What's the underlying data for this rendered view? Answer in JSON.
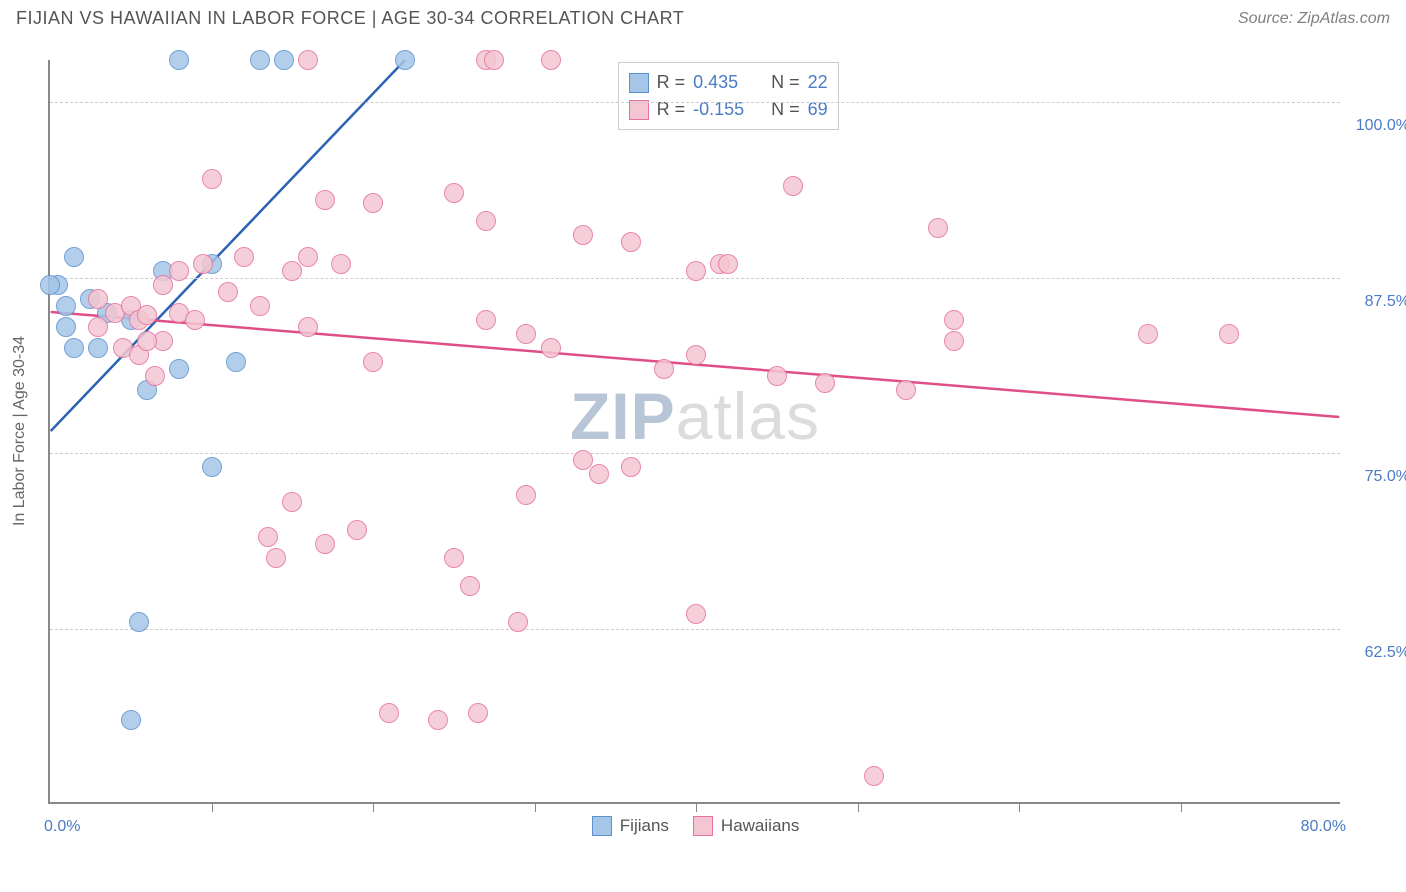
{
  "header": {
    "title": "FIJIAN VS HAWAIIAN IN LABOR FORCE | AGE 30-34 CORRELATION CHART",
    "source": "Source: ZipAtlas.com"
  },
  "chart": {
    "type": "scatter",
    "ylabel": "In Labor Force | Age 30-34",
    "background_color": "#ffffff",
    "grid_color": "#cccccc",
    "axis_color": "#888888",
    "label_color": "#4a7bc4",
    "axis_font_size": 16,
    "title_font_size": 18,
    "xlim": [
      0,
      80
    ],
    "ylim": [
      50,
      103
    ],
    "xtick_positions": [
      10,
      20,
      30,
      40,
      50,
      60,
      70
    ],
    "xlim_labels": {
      "min": "0.0%",
      "max": "80.0%"
    },
    "ytick_labels": [
      {
        "y": 100.0,
        "label": "100.0%"
      },
      {
        "y": 87.5,
        "label": "87.5%"
      },
      {
        "y": 75.0,
        "label": "75.0%"
      },
      {
        "y": 62.5,
        "label": "62.5%"
      }
    ],
    "marker_radius": 10,
    "marker_stroke_width": 1.5,
    "marker_fill_opacity": 0.35,
    "line_width": 2.5,
    "series": [
      {
        "name": "Fijians",
        "color_fill": "#a6c6e7",
        "color_stroke": "#5b92d0",
        "line_color": "#2b62b3",
        "R": "0.435",
        "N": "22",
        "trend": {
          "x1": 0,
          "y1": 76.5,
          "x2": 22,
          "y2": 103
        },
        "points": [
          {
            "x": 8,
            "y": 103
          },
          {
            "x": 13,
            "y": 103
          },
          {
            "x": 14.5,
            "y": 103
          },
          {
            "x": 22,
            "y": 103
          },
          {
            "x": 1.5,
            "y": 89
          },
          {
            "x": 0.5,
            "y": 87
          },
          {
            "x": 2.5,
            "y": 86
          },
          {
            "x": 1,
            "y": 85.5
          },
          {
            "x": 3.5,
            "y": 85
          },
          {
            "x": 1,
            "y": 84
          },
          {
            "x": 5,
            "y": 84.5
          },
          {
            "x": 7,
            "y": 88
          },
          {
            "x": 10,
            "y": 88.5
          },
          {
            "x": 3,
            "y": 82.5
          },
          {
            "x": 1.5,
            "y": 82.5
          },
          {
            "x": 6,
            "y": 79.5
          },
          {
            "x": 8,
            "y": 81
          },
          {
            "x": 11.5,
            "y": 81.5
          },
          {
            "x": 10,
            "y": 74
          },
          {
            "x": 5.5,
            "y": 63
          },
          {
            "x": 5,
            "y": 56
          },
          {
            "x": 0,
            "y": 87
          }
        ]
      },
      {
        "name": "Hawaiians",
        "color_fill": "#f3c6d2",
        "color_stroke": "#e772a0",
        "line_color": "#e04e87",
        "R": "-0.155",
        "N": "69",
        "trend": {
          "x1": 0,
          "y1": 85,
          "x2": 80,
          "y2": 77.5
        },
        "points": [
          {
            "x": 16,
            "y": 103
          },
          {
            "x": 27,
            "y": 103
          },
          {
            "x": 27.5,
            "y": 103
          },
          {
            "x": 31,
            "y": 103
          },
          {
            "x": 10,
            "y": 94.5
          },
          {
            "x": 17,
            "y": 93
          },
          {
            "x": 20,
            "y": 92.8
          },
          {
            "x": 25,
            "y": 93.5
          },
          {
            "x": 27,
            "y": 91.5
          },
          {
            "x": 46,
            "y": 94
          },
          {
            "x": 33,
            "y": 90.5
          },
          {
            "x": 8,
            "y": 88
          },
          {
            "x": 9.5,
            "y": 88.5
          },
          {
            "x": 15,
            "y": 88
          },
          {
            "x": 16,
            "y": 89
          },
          {
            "x": 18,
            "y": 88.5
          },
          {
            "x": 36,
            "y": 90
          },
          {
            "x": 40,
            "y": 88
          },
          {
            "x": 41.5,
            "y": 88.5
          },
          {
            "x": 55,
            "y": 91
          },
          {
            "x": 3,
            "y": 86
          },
          {
            "x": 4,
            "y": 85
          },
          {
            "x": 5,
            "y": 85.5
          },
          {
            "x": 5.5,
            "y": 84.5
          },
          {
            "x": 6,
            "y": 84.8
          },
          {
            "x": 7,
            "y": 87
          },
          {
            "x": 8,
            "y": 85
          },
          {
            "x": 13,
            "y": 85.5
          },
          {
            "x": 16,
            "y": 84
          },
          {
            "x": 27,
            "y": 84.5
          },
          {
            "x": 29.5,
            "y": 83.5
          },
          {
            "x": 4.5,
            "y": 82.5
          },
          {
            "x": 5.5,
            "y": 82
          },
          {
            "x": 6.5,
            "y": 80.5
          },
          {
            "x": 7,
            "y": 83
          },
          {
            "x": 20,
            "y": 81.5
          },
          {
            "x": 31,
            "y": 82.5
          },
          {
            "x": 38,
            "y": 81
          },
          {
            "x": 40,
            "y": 82
          },
          {
            "x": 45,
            "y": 80.5
          },
          {
            "x": 48,
            "y": 80
          },
          {
            "x": 53,
            "y": 79.5
          },
          {
            "x": 56,
            "y": 83
          },
          {
            "x": 68,
            "y": 83.5
          },
          {
            "x": 33,
            "y": 74.5
          },
          {
            "x": 34,
            "y": 73.5
          },
          {
            "x": 36,
            "y": 74
          },
          {
            "x": 29.5,
            "y": 72
          },
          {
            "x": 15,
            "y": 71.5
          },
          {
            "x": 13.5,
            "y": 69
          },
          {
            "x": 14,
            "y": 67.5
          },
          {
            "x": 17,
            "y": 68.5
          },
          {
            "x": 19,
            "y": 69.5
          },
          {
            "x": 25,
            "y": 67.5
          },
          {
            "x": 26,
            "y": 65.5
          },
          {
            "x": 29,
            "y": 63
          },
          {
            "x": 40,
            "y": 63.5
          },
          {
            "x": 21,
            "y": 56.5
          },
          {
            "x": 24,
            "y": 56
          },
          {
            "x": 26.5,
            "y": 56.5
          },
          {
            "x": 51,
            "y": 52
          },
          {
            "x": 3,
            "y": 84
          },
          {
            "x": 9,
            "y": 84.5
          },
          {
            "x": 11,
            "y": 86.5
          },
          {
            "x": 73,
            "y": 83.5
          },
          {
            "x": 56,
            "y": 84.5
          },
          {
            "x": 42,
            "y": 88.5
          },
          {
            "x": 12,
            "y": 89
          },
          {
            "x": 6,
            "y": 83
          }
        ]
      }
    ],
    "legend_bottom": [
      {
        "label": "Fijians",
        "fill": "#a6c6e7",
        "stroke": "#5b92d0"
      },
      {
        "label": "Hawaiians",
        "fill": "#f3c6d2",
        "stroke": "#e772a0"
      }
    ],
    "watermark": {
      "part1": "ZIP",
      "part2": "atlas"
    }
  }
}
